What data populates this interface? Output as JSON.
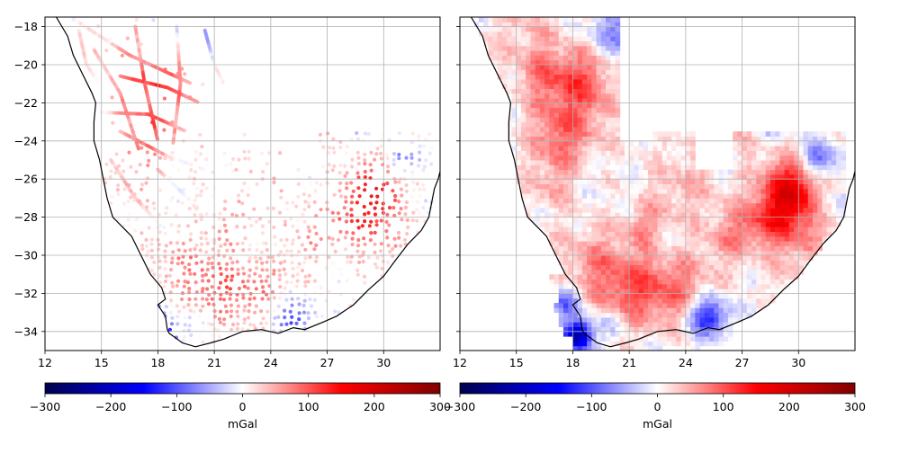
{
  "chart_data": [
    {
      "type": "scatter",
      "title": "",
      "description": "Point gravity anomaly observations over southern Africa",
      "xlim": [
        12,
        33
      ],
      "ylim": [
        -35,
        -17.5
      ],
      "x_ticks": [
        12,
        15,
        18,
        21,
        24,
        27,
        30
      ],
      "y_ticks": [
        -18,
        -20,
        -22,
        -24,
        -26,
        -28,
        -30,
        -32,
        -34
      ],
      "x_tick_labels": [
        "12",
        "15",
        "18",
        "21",
        "24",
        "27",
        "30"
      ],
      "y_tick_labels": [
        "−18",
        "−20",
        "−22",
        "−24",
        "−26",
        "−28",
        "−30",
        "−32",
        "−34"
      ],
      "grid": true,
      "colormap": "seismic",
      "colorbar": {
        "range": [
          -300,
          300
        ],
        "ticks": [
          -300,
          -200,
          -100,
          0,
          100,
          200,
          300
        ],
        "tick_labels": [
          "−300",
          "−200",
          "−100",
          "0",
          "100",
          "200",
          "300"
        ],
        "label": "mGal",
        "orientation": "horizontal"
      }
    },
    {
      "type": "heatmap",
      "title": "",
      "description": "Gridded gravity anomaly over southern Africa",
      "xlim": [
        12,
        33
      ],
      "ylim": [
        -35,
        -17.5
      ],
      "x_ticks": [
        12,
        15,
        18,
        21,
        24,
        27,
        30
      ],
      "y_ticks": [
        -18,
        -20,
        -22,
        -24,
        -26,
        -28,
        -30,
        -32,
        -34
      ],
      "x_tick_labels": [
        "12",
        "15",
        "18",
        "21",
        "24",
        "27",
        "30"
      ],
      "y_tick_labels": [],
      "grid": true,
      "colormap": "seismic",
      "colorbar": {
        "range": [
          -300,
          300
        ],
        "ticks": [
          -300,
          -200,
          -100,
          0,
          100,
          200,
          300
        ],
        "tick_labels": [
          "−300",
          "−200",
          "−100",
          "0",
          "100",
          "200",
          "300"
        ],
        "label": "mGal",
        "orientation": "horizontal"
      }
    }
  ],
  "coastline": {
    "units": "degrees",
    "west": [
      [
        12.6,
        -17.5
      ],
      [
        13.2,
        -18.5
      ],
      [
        13.5,
        -19.5
      ],
      [
        14.0,
        -20.5
      ],
      [
        14.5,
        -21.5
      ],
      [
        14.7,
        -22.0
      ],
      [
        14.6,
        -23.0
      ],
      [
        14.6,
        -24.0
      ],
      [
        14.9,
        -25.0
      ],
      [
        15.1,
        -26.0
      ],
      [
        15.3,
        -27.0
      ],
      [
        15.6,
        -28.0
      ],
      [
        16.2,
        -28.6
      ],
      [
        16.6,
        -29.0
      ],
      [
        17.1,
        -30.0
      ],
      [
        17.6,
        -31.0
      ],
      [
        18.2,
        -31.7
      ],
      [
        18.4,
        -32.3
      ],
      [
        18.0,
        -32.6
      ],
      [
        18.4,
        -33.2
      ],
      [
        18.5,
        -33.9
      ],
      [
        18.6,
        -34.1
      ],
      [
        18.9,
        -34.3
      ],
      [
        19.3,
        -34.6
      ],
      [
        20.0,
        -34.8
      ],
      [
        20.8,
        -34.6
      ],
      [
        21.5,
        -34.4
      ],
      [
        22.5,
        -34.0
      ],
      [
        23.5,
        -33.9
      ],
      [
        24.4,
        -34.1
      ],
      [
        25.2,
        -33.8
      ],
      [
        25.8,
        -33.9
      ],
      [
        26.8,
        -33.5
      ],
      [
        27.5,
        -33.2
      ],
      [
        28.4,
        -32.6
      ],
      [
        29.2,
        -31.8
      ],
      [
        30.0,
        -31.1
      ],
      [
        30.6,
        -30.3
      ],
      [
        31.3,
        -29.4
      ],
      [
        32.0,
        -28.7
      ],
      [
        32.4,
        -28.0
      ],
      [
        32.6,
        -27.0
      ],
      [
        32.7,
        -26.5
      ],
      [
        32.9,
        -26.0
      ],
      [
        33.0,
        -25.6
      ]
    ]
  },
  "clusters": [
    {
      "lon": 18.0,
      "lat": -22.0,
      "r": 2.3,
      "value": 75
    },
    {
      "lon": 17.2,
      "lat": -24.2,
      "r": 1.5,
      "value": 60
    },
    {
      "lon": 18.5,
      "lat": -20.5,
      "r": 1.5,
      "value": 50
    },
    {
      "lon": 15.5,
      "lat": -18.5,
      "r": 2.0,
      "value": 35
    },
    {
      "lon": 16.8,
      "lat": -26.5,
      "r": 1.3,
      "value": 40
    },
    {
      "lon": 19.0,
      "lat": -30.2,
      "r": 1.8,
      "value": 55
    },
    {
      "lon": 21.0,
      "lat": -31.8,
      "r": 1.9,
      "value": 85
    },
    {
      "lon": 23.5,
      "lat": -31.7,
      "r": 2.0,
      "value": 70
    },
    {
      "lon": 22.0,
      "lat": -28.5,
      "r": 1.3,
      "value": 55
    },
    {
      "lon": 26.5,
      "lat": -29.0,
      "r": 1.5,
      "value": 60
    },
    {
      "lon": 29.6,
      "lat": -26.3,
      "r": 1.4,
      "value": 150
    },
    {
      "lon": 28.5,
      "lat": -28.0,
      "r": 1.4,
      "value": 100
    },
    {
      "lon": 24.0,
      "lat": -26.2,
      "r": 2.0,
      "value": 40
    },
    {
      "lon": 27.0,
      "lat": -24.0,
      "r": 1.6,
      "value": 45
    },
    {
      "lon": 28.0,
      "lat": -23.0,
      "r": 1.0,
      "value": -70
    },
    {
      "lon": 31.0,
      "lat": -25.0,
      "r": 1.0,
      "value": -90
    },
    {
      "lon": 26.3,
      "lat": -25.1,
      "r": 0.7,
      "value": -60
    },
    {
      "lon": 18.3,
      "lat": -34.2,
      "r": 0.8,
      "value": -220
    },
    {
      "lon": 17.6,
      "lat": -32.5,
      "r": 0.8,
      "value": -90
    },
    {
      "lon": 25.2,
      "lat": -33.2,
      "r": 1.0,
      "value": -150
    },
    {
      "lon": 20.0,
      "lat": -33.5,
      "r": 0.8,
      "value": -40
    },
    {
      "lon": 20.5,
      "lat": -18.2,
      "r": 1.5,
      "value": -70
    },
    {
      "lon": 30.3,
      "lat": -28.0,
      "r": 1.5,
      "value": 70
    },
    {
      "lon": 30.0,
      "lat": -30.3,
      "r": 1.5,
      "value": 40
    },
    {
      "lon": 22.8,
      "lat": -29.3,
      "r": 1.2,
      "value": -20
    },
    {
      "lon": 31.5,
      "lat": -27.5,
      "r": 0.8,
      "value": -40
    },
    {
      "lon": 16.5,
      "lat": -20.5,
      "r": 1.3,
      "value": 40
    }
  ]
}
